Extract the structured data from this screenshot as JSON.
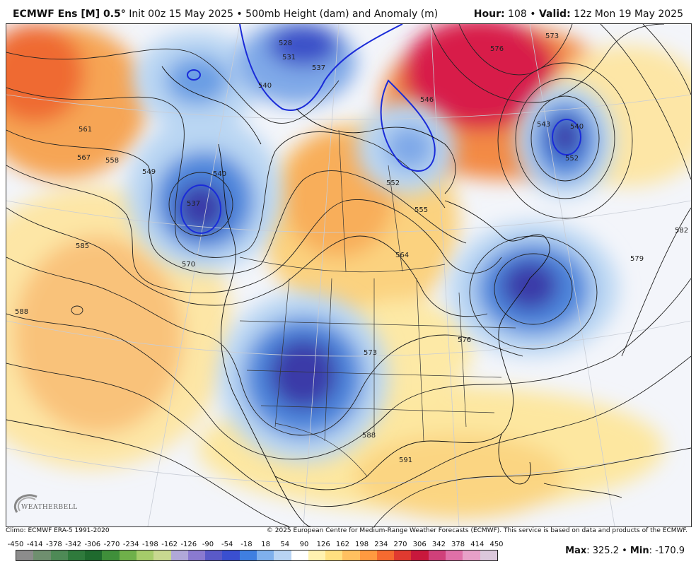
{
  "header": {
    "model": "ECMWF Ens [M] 0.5",
    "degree": "°",
    "init": " Init 00z 15 May 2025",
    "sep": " • ",
    "product": "500mb Height (dam) and Anomaly (m)",
    "hour_label": "Hour:",
    "hour_value": " 108",
    "valid_label": "Valid:",
    "valid_value": " 12z Mon 19 May 2025"
  },
  "footer": {
    "climo": "Climo: ECMWF ERA-5 1991-2020",
    "copyright": "© 2025 European Centre for Medium-Range Weather Forecasts (ECMWF). This service is based on data and products of the ECMWF.",
    "max_label": "Max",
    "max_value": ": 325.2",
    "min_label": "Min",
    "min_value": ": -170.9",
    "sep": " • "
  },
  "logo": {
    "text": "WEATHERBELL"
  },
  "colorbar": {
    "labels": [
      "-450",
      "-414",
      "-378",
      "-342",
      "-306",
      "-270",
      "-234",
      "-198",
      "-162",
      "-126",
      "-90",
      "-54",
      "-18",
      "18",
      "54",
      "90",
      "126",
      "162",
      "198",
      "234",
      "270",
      "306",
      "342",
      "378",
      "414",
      "450"
    ],
    "colors": [
      "#8c8c8c",
      "#6f8f6f",
      "#4e8a56",
      "#2f7a3c",
      "#1f6a2e",
      "#3f8f3a",
      "#6fb04a",
      "#a5cc6a",
      "#c8d890",
      "#b0a8d8",
      "#8a7ad0",
      "#5a5ac8",
      "#3a4fd0",
      "#3f7fe0",
      "#7fb0ec",
      "#b8d4f4",
      "#ffffff",
      "#fff2b0",
      "#ffe080",
      "#ffc060",
      "#ff9a40",
      "#f56a30",
      "#e03a30",
      "#c8183c",
      "#d0407a",
      "#e070a8",
      "#e8a0c8",
      "#dcc8dc"
    ]
  },
  "map": {
    "height_labels": [
      "528",
      "531",
      "537",
      "540",
      "549",
      "558",
      "561",
      "567",
      "585",
      "570",
      "588",
      "546",
      "552",
      "555",
      "564",
      "573",
      "576",
      "582",
      "579",
      "591",
      "543",
      "540",
      "573",
      "576",
      "537",
      "540",
      "552",
      "588"
    ]
  },
  "colors": {
    "warm_light": "#fdecaa",
    "warm_mid": "#f8b560",
    "warm_strong": "#f07a3a",
    "hot": "#d81e4a",
    "cool_light": "#b6d4f2",
    "cool_mid": "#4e86dc",
    "cool_strong": "#3a3aa8",
    "contour": "#222222",
    "zero_contour": "#1a2bd8"
  }
}
